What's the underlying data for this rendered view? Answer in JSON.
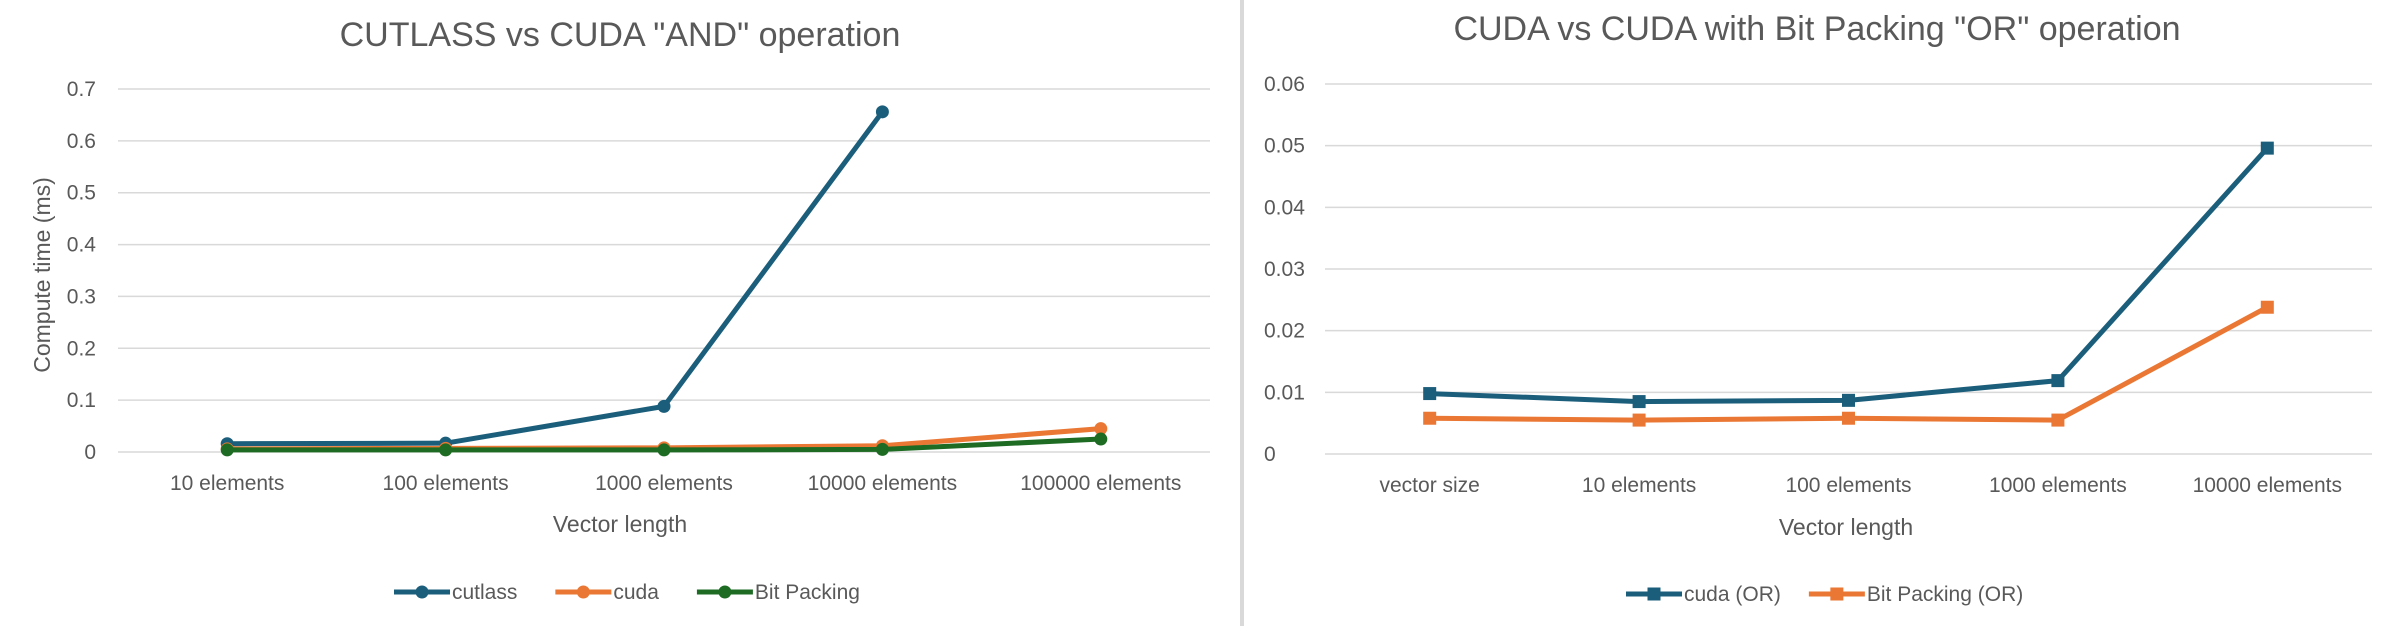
{
  "chart_data": [
    {
      "type": "line",
      "title": "CUTLASS vs CUDA \"AND\" operation",
      "xlabel": "Vector length",
      "ylabel": "Compute time (ms)",
      "categories": [
        "10 elements",
        "100 elements",
        "1000 elements",
        "10000 elements",
        "100000 elements"
      ],
      "ylim": [
        0,
        0.7
      ],
      "yticks": [
        0,
        0.1,
        0.2,
        0.3,
        0.4,
        0.5,
        0.6,
        0.7
      ],
      "ytick_labels": [
        "0",
        "0.1",
        "0.2",
        "0.3",
        "0.4",
        "0.5",
        "0.6",
        "0.7"
      ],
      "grid": true,
      "legend_position": "bottom",
      "marker": "circle",
      "series": [
        {
          "name": "cutlass",
          "color": "#1b5e7b",
          "values": [
            0.016,
            0.017,
            0.088,
            0.656,
            null
          ]
        },
        {
          "name": "cuda",
          "color": "#ea7733",
          "values": [
            0.006,
            0.007,
            0.008,
            0.012,
            0.045
          ]
        },
        {
          "name": "Bit Packing",
          "color": "#1e6b23",
          "values": [
            0.004,
            0.004,
            0.004,
            0.005,
            0.025
          ]
        }
      ]
    },
    {
      "type": "line",
      "title": "CUDA vs CUDA with Bit Packing \"OR\" operation",
      "xlabel": "Vector length",
      "ylabel": "",
      "categories": [
        "vector size",
        "10 elements",
        "100 elements",
        "1000 elements",
        "10000 elements"
      ],
      "ylim": [
        0,
        0.06
      ],
      "yticks": [
        0,
        0.01,
        0.02,
        0.03,
        0.04,
        0.05,
        0.06
      ],
      "ytick_labels": [
        "0",
        "0.01",
        "0.02",
        "0.03",
        "0.04",
        "0.05",
        "0.06"
      ],
      "grid": true,
      "legend_position": "bottom",
      "marker": "square",
      "series": [
        {
          "name": "cuda (OR)",
          "color": "#1b5e7b",
          "values": [
            0.0098,
            0.0085,
            0.0087,
            0.0119,
            0.0496
          ]
        },
        {
          "name": "Bit Packing (OR)",
          "color": "#ea7733",
          "values": [
            0.0058,
            0.0055,
            0.0058,
            0.0055,
            0.0238
          ]
        }
      ]
    }
  ]
}
